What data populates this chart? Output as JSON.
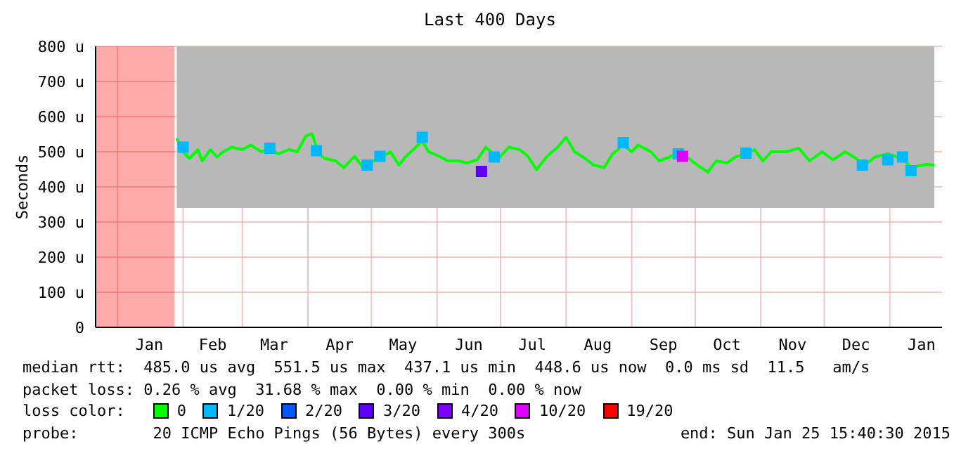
{
  "chart_data": {
    "type": "line",
    "title": "Last 400 Days",
    "ylabel": "Seconds",
    "legend_title": "loss color:",
    "legend": "bottom",
    "grid": true,
    "marker": "none",
    "xlim": [
      "2013-12-21T15:40",
      "2015-01-25T15:40"
    ],
    "xticks": [
      {
        "value": "2014-01-01",
        "label": null
      },
      {
        "value": "2014-01-16",
        "label": "Jan"
      },
      {
        "value": "2014-02-01",
        "label": null
      },
      {
        "value": "2014-02-15",
        "label": "Feb"
      },
      {
        "value": "2014-03-01",
        "label": null
      },
      {
        "value": "2014-03-16",
        "label": "Mar"
      },
      {
        "value": "2014-04-01",
        "label": null
      },
      {
        "value": "2014-04-16",
        "label": "Apr"
      },
      {
        "value": "2014-05-01",
        "label": null
      },
      {
        "value": "2014-05-16",
        "label": "May"
      },
      {
        "value": "2014-06-01",
        "label": null
      },
      {
        "value": "2014-06-16",
        "label": "Jun"
      },
      {
        "value": "2014-07-01",
        "label": null
      },
      {
        "value": "2014-07-16",
        "label": "Jul"
      },
      {
        "value": "2014-08-01",
        "label": null
      },
      {
        "value": "2014-08-16",
        "label": "Aug"
      },
      {
        "value": "2014-09-01",
        "label": null
      },
      {
        "value": "2014-09-16",
        "label": "Sep"
      },
      {
        "value": "2014-10-01",
        "label": null
      },
      {
        "value": "2014-10-16",
        "label": "Oct"
      },
      {
        "value": "2014-11-01",
        "label": null
      },
      {
        "value": "2014-11-16",
        "label": "Nov"
      },
      {
        "value": "2014-12-01",
        "label": null
      },
      {
        "value": "2014-12-16",
        "label": "Dec"
      },
      {
        "value": "2015-01-01",
        "label": null
      },
      {
        "value": "2015-01-16",
        "label": "Jan"
      }
    ],
    "ylim": [
      0,
      800
    ],
    "yticks": [
      0,
      {
        "value": 100,
        "label": "100 u"
      },
      {
        "value": 200,
        "label": "200 u"
      },
      {
        "value": 300,
        "label": "300 u"
      },
      {
        "value": 400,
        "label": "400 u"
      },
      {
        "value": 500,
        "label": "500 u"
      },
      {
        "value": 600,
        "label": "600 u"
      },
      {
        "value": 700,
        "label": "700 u"
      },
      {
        "value": 800,
        "label": "800 u"
      }
    ],
    "series": [
      {
        "name": "19/20",
        "type": "area",
        "color": "#ff0000",
        "x": [
          "2013-12-21T15:40",
          "2014-01-28"
        ],
        "values": [
          800,
          800
        ]
      },
      {
        "name": "0",
        "color": "#00ff00",
        "x": [
          "2014-01-29",
          "2014-02-01",
          "2014-02-04",
          "2014-02-08",
          "2014-02-10",
          "2014-02-14",
          "2014-02-17",
          "2014-02-20",
          "2014-02-24",
          "2014-03-01",
          "2014-03-05",
          "2014-03-10",
          "2014-03-14",
          "2014-03-18",
          "2014-03-23",
          "2014-03-27",
          "2014-03-31",
          "2014-04-03",
          "2014-04-06",
          "2014-04-09",
          "2014-04-14",
          "2014-04-18",
          "2014-04-23",
          "2014-04-27",
          "2014-05-02",
          "2014-05-06",
          "2014-05-10",
          "2014-05-14",
          "2014-05-17",
          "2014-05-22",
          "2014-05-25",
          "2014-05-28",
          "2014-06-02",
          "2014-06-06",
          "2014-06-11",
          "2014-06-15",
          "2014-06-20",
          "2014-06-24",
          "2014-06-30",
          "2014-07-05",
          "2014-07-10",
          "2014-07-14",
          "2014-07-18",
          "2014-07-23",
          "2014-07-28",
          "2014-08-01",
          "2014-08-05",
          "2014-08-10",
          "2014-08-14",
          "2014-08-19",
          "2014-08-23",
          "2014-08-28",
          "2014-09-01",
          "2014-09-04",
          "2014-09-10",
          "2014-09-14",
          "2014-09-19",
          "2014-09-23",
          "2014-09-28",
          "2014-10-02",
          "2014-10-07",
          "2014-10-11",
          "2014-10-16",
          "2014-10-20",
          "2014-10-24",
          "2014-10-29",
          "2014-11-02",
          "2014-11-06",
          "2014-11-13",
          "2014-11-19",
          "2014-11-24",
          "2014-11-30",
          "2014-12-05",
          "2014-12-11",
          "2014-12-16",
          "2014-12-20",
          "2014-12-25",
          "2014-12-31",
          "2015-01-07",
          "2015-01-11",
          "2015-01-18",
          "2015-01-22"
        ],
        "values": [
          538,
          500,
          481,
          506,
          474,
          506,
          485,
          500,
          513,
          506,
          519,
          500,
          506,
          494,
          506,
          500,
          545,
          551,
          494,
          481,
          474,
          455,
          487,
          455,
          474,
          485,
          500,
          462,
          485,
          513,
          532,
          500,
          487,
          474,
          474,
          468,
          477,
          513,
          481,
          513,
          506,
          487,
          449,
          487,
          513,
          541,
          500,
          481,
          462,
          455,
          494,
          519,
          500,
          519,
          500,
          474,
          485,
          500,
          481,
          462,
          442,
          474,
          468,
          485,
          494,
          506,
          474,
          500,
          500,
          510,
          474,
          500,
          477,
          500,
          481,
          462,
          485,
          494,
          481,
          455,
          464,
          462
        ],
        "lower": [
          340,
          340,
          340,
          340,
          340,
          340,
          340,
          340,
          340,
          340,
          340,
          340,
          340,
          340,
          340,
          340,
          340,
          340,
          340,
          340,
          340,
          340,
          340,
          340,
          340,
          340,
          340,
          340,
          340,
          340,
          340,
          340,
          340,
          340,
          340,
          340,
          340,
          340,
          340,
          340,
          340,
          340,
          340,
          340,
          340,
          340,
          340,
          340,
          340,
          340,
          340,
          340,
          340,
          340,
          340,
          340,
          340,
          340,
          340,
          340,
          340,
          340,
          340,
          340,
          340,
          340,
          340,
          340,
          340,
          340,
          340,
          340,
          340,
          340,
          340,
          340,
          340,
          340,
          340,
          340,
          340,
          340
        ],
        "upper": [
          800,
          800,
          800,
          800,
          800,
          800,
          800,
          800,
          800,
          800,
          800,
          800,
          800,
          800,
          800,
          800,
          800,
          800,
          800,
          800,
          800,
          800,
          800,
          800,
          800,
          800,
          800,
          800,
          800,
          800,
          800,
          800,
          800,
          800,
          800,
          800,
          800,
          800,
          800,
          800,
          800,
          800,
          800,
          800,
          800,
          800,
          800,
          800,
          800,
          800,
          800,
          800,
          800,
          800,
          800,
          800,
          800,
          800,
          800,
          800,
          800,
          800,
          800,
          800,
          800,
          800,
          800,
          800,
          800,
          800,
          800,
          800,
          800,
          800,
          800,
          800,
          800,
          800,
          800,
          800,
          800,
          800
        ]
      },
      {
        "name": "1/20",
        "type": "scatter",
        "marker": "square",
        "color": "#00b8ff",
        "x": [
          "2014-02-01",
          "2014-03-14",
          "2014-04-05",
          "2014-04-29",
          "2014-05-05",
          "2014-05-25",
          "2014-06-28",
          "2014-08-28",
          "2014-09-23",
          "2014-10-25",
          "2014-12-19",
          "2014-12-31",
          "2015-01-07",
          "2015-01-11"
        ],
        "values": [
          513,
          510,
          503,
          462,
          487,
          541,
          485,
          526,
          494,
          496,
          462,
          477,
          485,
          446
        ]
      },
      {
        "name": "2/20",
        "type": "scatter",
        "marker": "square",
        "color": "#0059ff"
      },
      {
        "name": "3/20",
        "type": "scatter",
        "marker": "square",
        "color": "#5e00ff",
        "x": [
          "2014-06-22"
        ],
        "values": [
          444
        ]
      },
      {
        "name": "4/20",
        "type": "scatter",
        "marker": "square",
        "color": "#7e00ff"
      },
      {
        "name": "10/20",
        "type": "scatter",
        "marker": "square",
        "color": "#dd00ff",
        "x": [
          "2014-09-25"
        ],
        "values": [
          487
        ]
      }
    ],
    "annotations": [
      "median rtt:  485.0 us avg  551.5 us max  437.1 us min  448.6 us now  0.0 ms sd  11.5   am/s",
      "packet loss: 0.26 % avg  31.68 % max  0.00 % min  0.00 % now",
      "probe:        20 ICMP Echo Pings (56 Bytes) every 300s",
      "end: Sun Jan 25 15:40:30 2015"
    ]
  }
}
